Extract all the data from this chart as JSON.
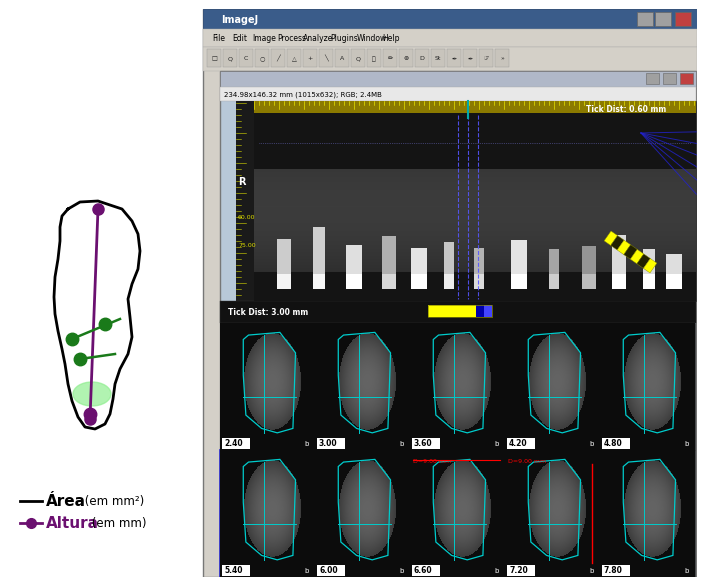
{
  "figure_width": 6.87,
  "figure_height": 5.68,
  "bg_color": "#ffffff",
  "area_label": "Área",
  "altura_label": "Altura",
  "em_mm2": " (em mm²)",
  "em_mm": " (em mm)",
  "imagej_title": "ImageJ",
  "menu_items": [
    "File",
    "Edit",
    "Image",
    "Process",
    "Analyze",
    "Plugins",
    "Window",
    "Help"
  ],
  "inner_title_text": "234.98x146.32 mm (1015x632); RGB; 2.4MB",
  "tick_dist_top": "Tick Dist: 0.60 mm",
  "tick_dist_bottom": "Tick Dist: 3.00 mm",
  "ruler_labels": [
    "60.00",
    "75.00"
  ],
  "panel_labels_row1": [
    "2.40",
    "3.00",
    "3.60",
    "4.20",
    "4.80"
  ],
  "panel_labels_row2": [
    "5.40",
    "6.00",
    "6.60",
    "7.20",
    "7.80"
  ],
  "red_label": "D=9.00 mm",
  "purple_color": "#6b1070",
  "green_color": "#1a7a1a",
  "light_green_color": "#90ee90",
  "cyan_color": "#00cccc",
  "title_bar_color": "#3a5c8a",
  "window_bg": "#d4d0c8",
  "xray_bg": "#111111",
  "toolbar_icon_bg": "#c8c4bc"
}
